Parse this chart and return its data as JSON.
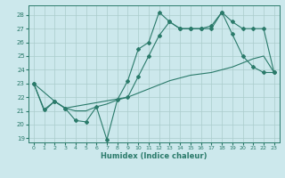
{
  "xlabel": "Humidex (Indice chaleur)",
  "background_color": "#cce8ec",
  "grid_color": "#aacccc",
  "line_color": "#2a7a6a",
  "xlim": [
    -0.5,
    23.5
  ],
  "ylim": [
    18.7,
    28.7
  ],
  "yticks": [
    19,
    20,
    21,
    22,
    23,
    24,
    25,
    26,
    27,
    28
  ],
  "xticks": [
    0,
    1,
    2,
    3,
    4,
    5,
    6,
    7,
    8,
    9,
    10,
    11,
    12,
    13,
    14,
    15,
    16,
    17,
    18,
    19,
    20,
    21,
    22,
    23
  ],
  "line_zigzag": {
    "x": [
      0,
      1,
      2,
      3,
      4,
      5,
      6,
      7,
      8,
      9,
      10,
      11,
      12,
      13,
      14,
      15,
      16,
      17,
      18,
      19,
      20,
      21,
      22,
      23
    ],
    "y": [
      23.0,
      21.1,
      21.7,
      21.2,
      20.3,
      20.2,
      21.3,
      18.9,
      21.8,
      23.2,
      25.5,
      26.0,
      28.2,
      27.5,
      27.0,
      27.0,
      27.0,
      27.0,
      28.2,
      26.6,
      25.0,
      24.2,
      23.8,
      23.8
    ]
  },
  "line_upper": {
    "x": [
      0,
      2,
      3,
      9,
      10,
      11,
      12,
      13,
      14,
      15,
      16,
      17,
      18,
      19,
      20,
      21,
      22,
      23
    ],
    "y": [
      23.0,
      21.7,
      21.2,
      22.0,
      23.5,
      25.0,
      26.5,
      27.5,
      27.0,
      27.0,
      27.0,
      27.2,
      28.2,
      27.5,
      27.0,
      27.0,
      27.0,
      23.8
    ]
  },
  "line_lower": {
    "x": [
      0,
      1,
      2,
      3,
      4,
      5,
      6,
      7,
      8,
      9,
      10,
      11,
      12,
      13,
      14,
      15,
      16,
      17,
      18,
      19,
      20,
      21,
      22,
      23
    ],
    "y": [
      23.0,
      21.0,
      21.7,
      21.2,
      21.0,
      21.0,
      21.3,
      21.5,
      21.8,
      22.0,
      22.3,
      22.6,
      22.9,
      23.2,
      23.4,
      23.6,
      23.7,
      23.8,
      24.0,
      24.2,
      24.5,
      24.8,
      25.0,
      23.8
    ]
  }
}
